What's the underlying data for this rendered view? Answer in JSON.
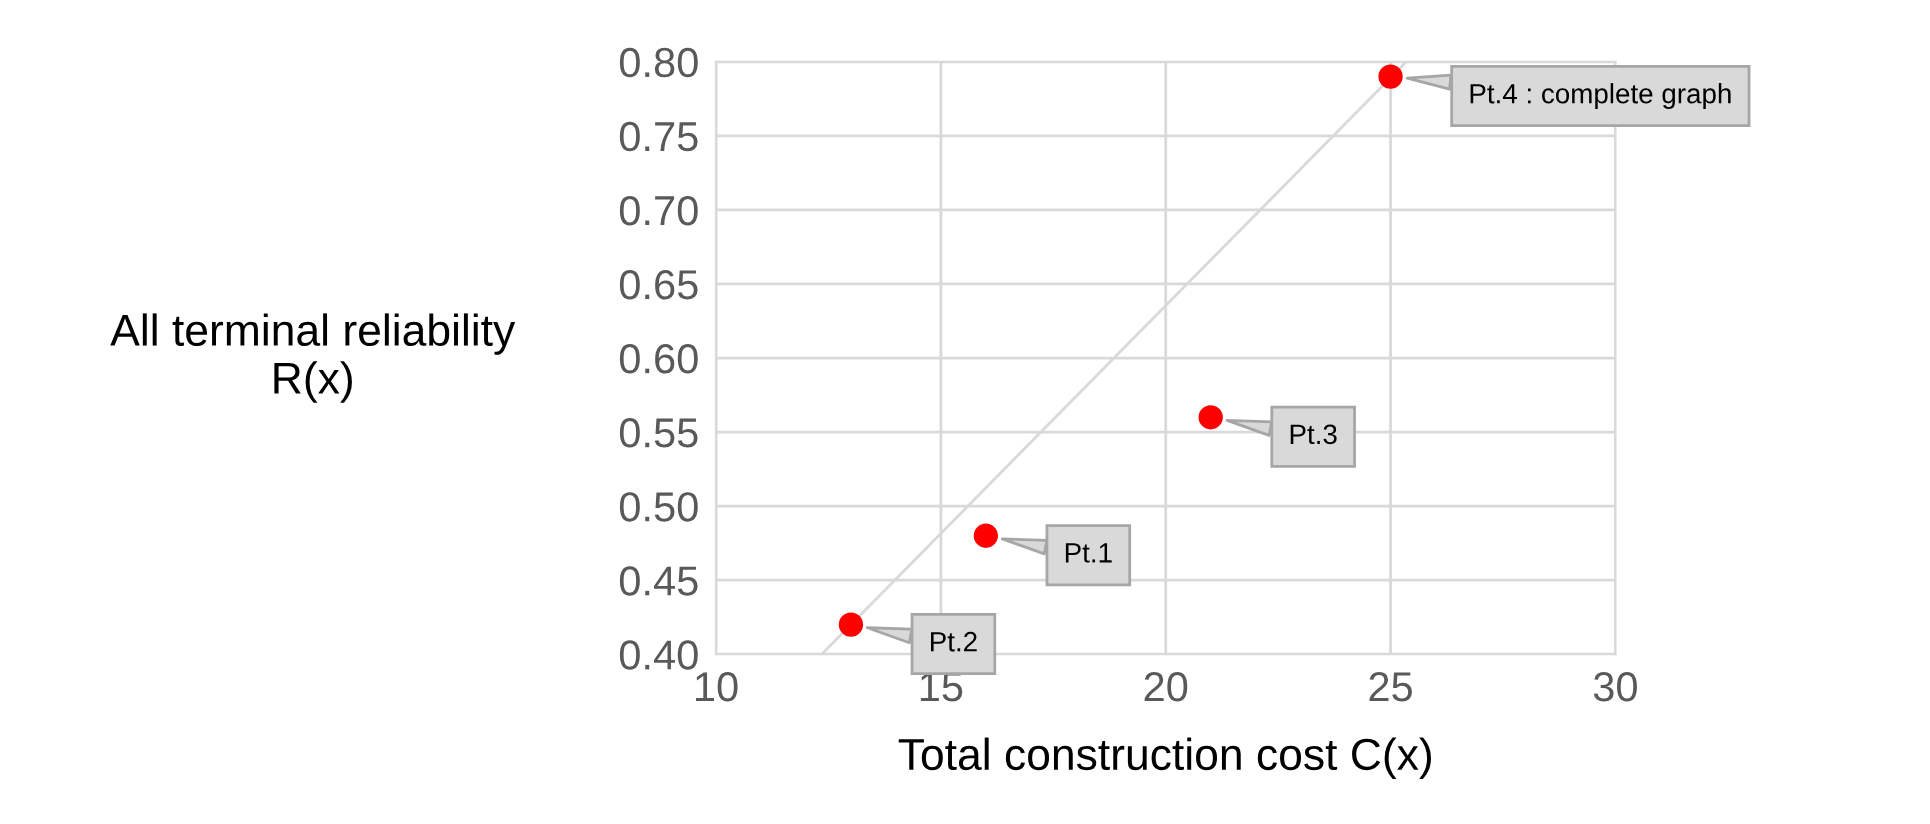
{
  "chart_data": {
    "type": "scatter",
    "xlabel": "Total construction cost C(x)",
    "ylabel": "All terminal reliability\nR(x)",
    "series": [
      {
        "color": "#ff0000",
        "x": [
          16,
          13,
          21,
          25
        ],
        "values": [
          0.48,
          0.42,
          0.56,
          0.79
        ],
        "marker": "circle"
      },
      {
        "type": "line",
        "color": "#d9d9d9",
        "x": [
          12.35,
          25.35
        ],
        "values": [
          0.4,
          0.8
        ],
        "marker": "none",
        "line_style": "solid"
      }
    ],
    "annotations": [
      {
        "text": "Pt.1",
        "x": 16,
        "y": 0.48
      },
      {
        "text": "Pt.2",
        "x": 13,
        "y": 0.42
      },
      {
        "text": "Pt.3",
        "x": 21,
        "y": 0.56
      },
      {
        "text": "Pt.4 : complete graph",
        "x": 25,
        "y": 0.79
      }
    ],
    "xlim": [
      10,
      30
    ],
    "xticks": [
      10,
      15,
      20,
      25,
      30
    ],
    "ylim": [
      0.4,
      0.8
    ],
    "yticks": [
      {
        "value": 0.4,
        "label": "0.40"
      },
      {
        "value": 0.45,
        "label": "0.45"
      },
      {
        "value": 0.5,
        "label": "0.50"
      },
      {
        "value": 0.55,
        "label": "0.55"
      },
      {
        "value": 0.6,
        "label": "0.60"
      },
      {
        "value": 0.65,
        "label": "0.65"
      },
      {
        "value": 0.7,
        "label": "0.70"
      },
      {
        "value": 0.75,
        "label": "0.75"
      },
      {
        "value": 0.8,
        "label": "0.80"
      }
    ],
    "grid": true,
    "legend": false
  }
}
